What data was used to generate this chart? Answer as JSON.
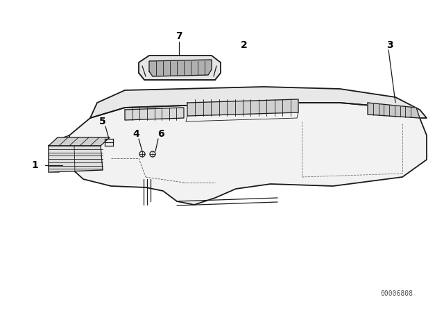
{
  "background_color": "#ffffff",
  "line_color": "#1a1a1a",
  "label_color": "#000000",
  "watermark": "00006808",
  "fig_width": 6.4,
  "fig_height": 4.48,
  "dpi": 100,
  "lw_main": 1.3,
  "lw_med": 0.9,
  "lw_thin": 0.6,
  "label_fontsize": 10,
  "watermark_fontsize": 7
}
